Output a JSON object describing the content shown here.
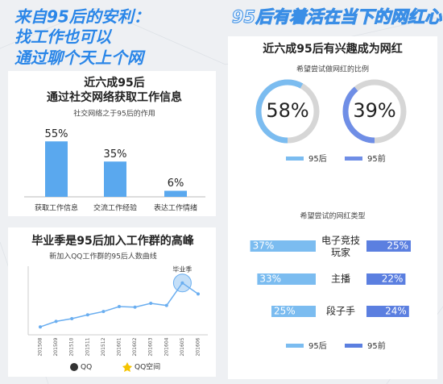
{
  "left_title": [
    "来自95后的安利：",
    "找工作也可以",
    "通过聊个天上个网"
  ],
  "right_title": "95后有着活在当下的网红心",
  "chart_data": [
    {
      "type": "bar",
      "title": [
        "近六成95后",
        "通过社交网络获取工作信息"
      ],
      "subtitle": "社交网络之于95后的作用",
      "categories": [
        "获取工作信息",
        "交流工作经验",
        "表达工作情绪"
      ],
      "values": [
        55,
        35,
        6
      ],
      "value_labels": [
        "55%",
        "35%",
        "6%"
      ],
      "color": "#5aa8ee",
      "ylim": [
        0,
        60
      ]
    },
    {
      "type": "line",
      "title": "毕业季是95后加入工作群的高峰",
      "subtitle": "新加入QQ工作群的95后人数曲线",
      "categories": [
        "201508",
        "201509",
        "201510",
        "201511",
        "201512",
        "201601",
        "201602",
        "201603",
        "201604",
        "201605",
        "201606"
      ],
      "values": [
        10,
        20,
        25,
        32,
        38,
        47,
        46,
        53,
        49,
        90,
        70
      ],
      "color": "#6aaef0",
      "ylim": [
        0,
        100
      ],
      "annotation": "毕业季"
    },
    {
      "type": "donut",
      "title": "近六成95后有兴趣成为网红",
      "subtitle": "希望尝试做网红的比例",
      "series": [
        {
          "name": "95后",
          "color": "#7bbcf0",
          "values": [
            58
          ],
          "value_labels": [
            "58%"
          ]
        },
        {
          "name": "95前",
          "color": "#6f8ee6",
          "values": [
            39
          ],
          "value_labels": [
            "39%"
          ]
        }
      ]
    },
    {
      "type": "diverging-bar",
      "subtitle": "希望尝试的网红类型",
      "categories": [
        "电子竞技玩家",
        "主播",
        "段子手"
      ],
      "xlim": [
        0,
        40
      ],
      "series": [
        {
          "name": "95后",
          "color": "#7bbcf0",
          "values": [
            37,
            33,
            25
          ],
          "value_labels": [
            "37%",
            "33%",
            "25%"
          ]
        },
        {
          "name": "95前",
          "color": "#5b7fe0",
          "values": [
            25,
            22,
            24
          ],
          "value_labels": [
            "25%",
            "22%",
            "24%"
          ]
        }
      ]
    }
  ],
  "footer": [
    "QQ",
    "QQ空间"
  ]
}
